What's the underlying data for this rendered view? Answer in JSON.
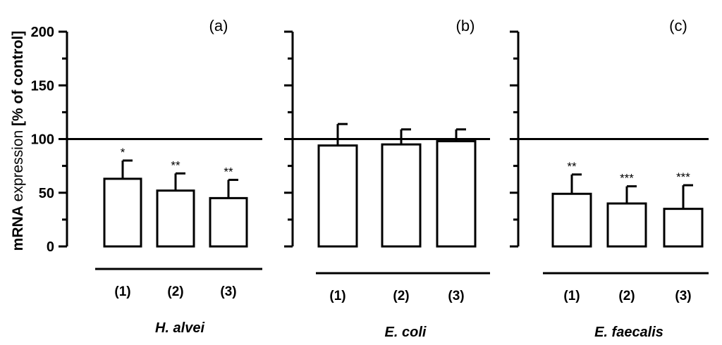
{
  "chart_data": {
    "type": "bar",
    "ylabel_bold": "mRNA",
    "ylabel_mid": " expression ",
    "ylabel_end": "[% of control]",
    "ylim": [
      0,
      200
    ],
    "yticks": [
      "0",
      "50",
      "100",
      "150",
      "200"
    ],
    "reference_line": 100,
    "panels": [
      {
        "panel_label": "(a)",
        "species": "H. alvei",
        "categories": [
          "(1)",
          "(2)",
          "(3)"
        ],
        "values": [
          63,
          52,
          45
        ],
        "errors": [
          17,
          16,
          17
        ],
        "significance": [
          "*",
          "**",
          "**"
        ]
      },
      {
        "panel_label": "(b)",
        "species": "E. coli",
        "categories": [
          "(1)",
          "(2)",
          "(3)"
        ],
        "values": [
          94,
          95,
          98
        ],
        "errors": [
          20,
          14,
          11
        ],
        "significance": [
          "",
          "",
          ""
        ]
      },
      {
        "panel_label": "(c)",
        "species": "E. faecalis",
        "categories": [
          "(1)",
          "(2)",
          "(3)"
        ],
        "values": [
          49,
          40,
          35
        ],
        "errors": [
          18,
          16,
          22
        ],
        "significance": [
          "**",
          "***",
          "***"
        ]
      }
    ]
  }
}
